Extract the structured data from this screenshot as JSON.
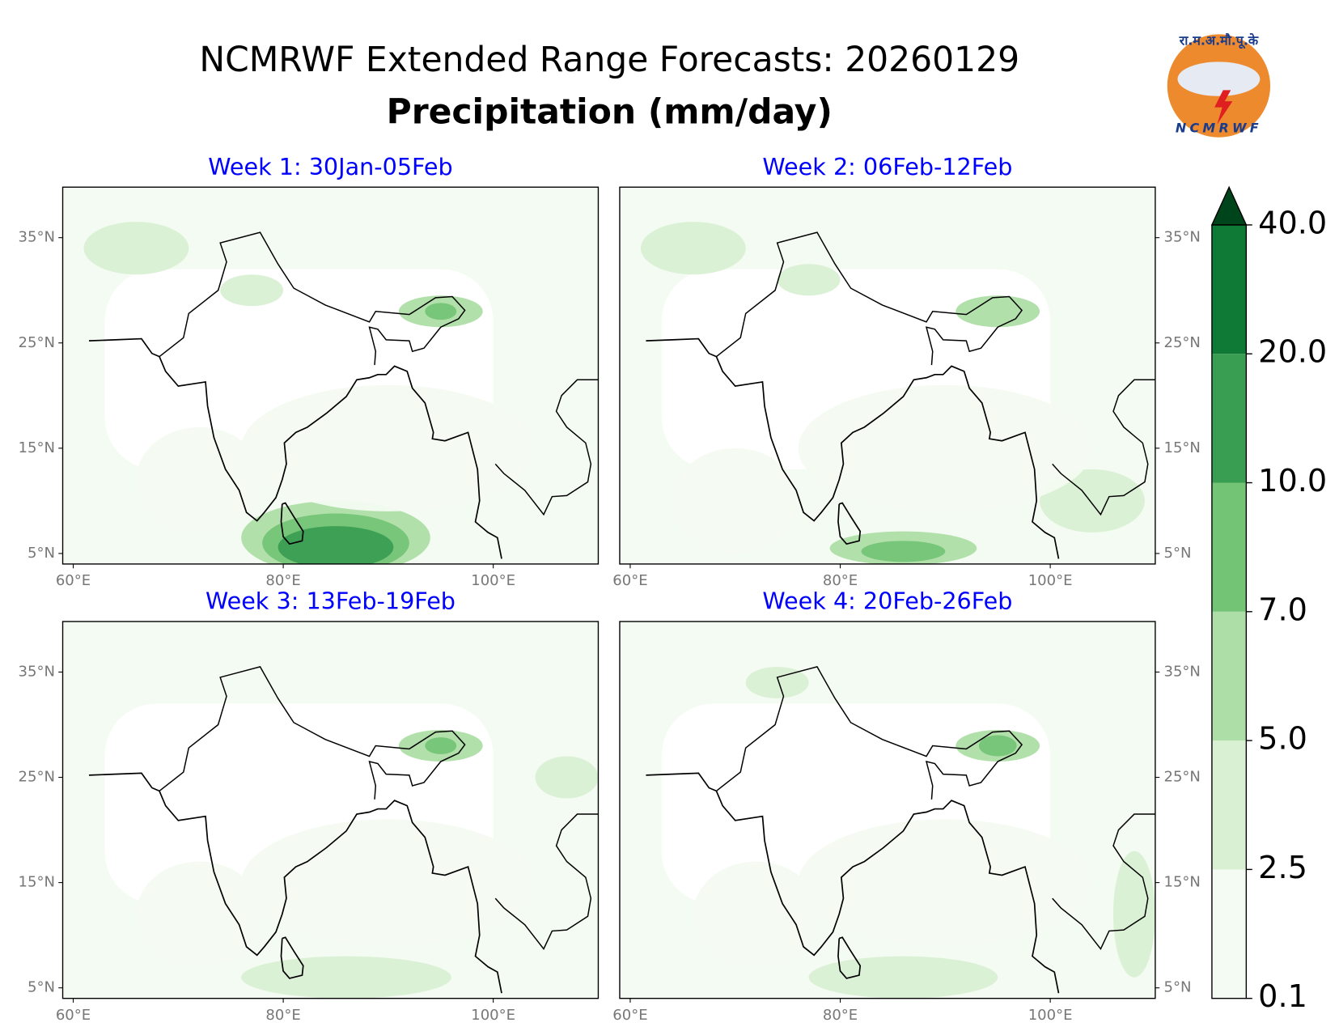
{
  "title": "NCMRWF Extended Range Forecasts: 20260129",
  "subtitle": "Precipitation (mm/day)",
  "logo": {
    "hindi": "रा.म.अ.मौ.पू.के",
    "text": "NCMRWF"
  },
  "chart_data": [
    {
      "type": "map",
      "title": "Week 1: 30Jan-05Feb",
      "xlim": [
        59,
        110
      ],
      "ylim": [
        4,
        39.8
      ],
      "xticks": [
        {
          "value": 60,
          "label": "60°E"
        },
        {
          "value": 80,
          "label": "80°E"
        },
        {
          "value": 100,
          "label": "100°E"
        }
      ],
      "yticks": [
        {
          "value": 35,
          "label": "35°N"
        },
        {
          "value": 25,
          "label": "25°N"
        },
        {
          "value": 15,
          "label": "15°N"
        },
        {
          "value": 5,
          "label": "5°N"
        }
      ],
      "ytick_side": "left"
    },
    {
      "type": "map",
      "title": "Week 2: 06Feb-12Feb",
      "xlim": [
        59,
        110
      ],
      "ylim": [
        4,
        39.8
      ],
      "xticks": [
        {
          "value": 60,
          "label": "60°E"
        },
        {
          "value": 80,
          "label": "80°E"
        },
        {
          "value": 100,
          "label": "100°E"
        }
      ],
      "yticks": [
        {
          "value": 35,
          "label": "35°N"
        },
        {
          "value": 25,
          "label": "25°N"
        },
        {
          "value": 15,
          "label": "15°N"
        },
        {
          "value": 5,
          "label": "5°N"
        }
      ],
      "ytick_side": "right"
    },
    {
      "type": "map",
      "title": "Week 3: 13Feb-19Feb",
      "xlim": [
        59,
        110
      ],
      "ylim": [
        4,
        39.8
      ],
      "xticks": [
        {
          "value": 60,
          "label": "60°E"
        },
        {
          "value": 80,
          "label": "80°E"
        },
        {
          "value": 100,
          "label": "100°E"
        }
      ],
      "yticks": [
        {
          "value": 35,
          "label": "35°N"
        },
        {
          "value": 25,
          "label": "25°N"
        },
        {
          "value": 15,
          "label": "15°N"
        },
        {
          "value": 5,
          "label": "5°N"
        }
      ],
      "ytick_side": "left"
    },
    {
      "type": "map",
      "title": "Week 4: 20Feb-26Feb",
      "xlim": [
        59,
        110
      ],
      "ylim": [
        4,
        39.8
      ],
      "xticks": [
        {
          "value": 60,
          "label": "60°E"
        },
        {
          "value": 80,
          "label": "80°E"
        },
        {
          "value": 100,
          "label": "100°E"
        }
      ],
      "yticks": [
        {
          "value": 35,
          "label": "35°N"
        },
        {
          "value": 25,
          "label": "25°N"
        },
        {
          "value": 15,
          "label": "15°N"
        },
        {
          "value": 5,
          "label": "5°N"
        }
      ],
      "ytick_side": "right"
    }
  ],
  "colorbar": {
    "levels": [
      0.1,
      2.5,
      {
        "value": 5,
        "label": "5.0"
      },
      {
        "value": 7,
        "label": "7.0"
      },
      {
        "value": 10,
        "label": "10.0"
      },
      {
        "value": 20,
        "label": "20.0"
      },
      {
        "value": 40,
        "label": "40.0"
      }
    ],
    "colors": [
      "#f4fbf2",
      "#d9f0d3",
      "#aedea7",
      "#74c476",
      "#3a9e52",
      "#0f7a35"
    ],
    "extend_color": "#00441b"
  }
}
